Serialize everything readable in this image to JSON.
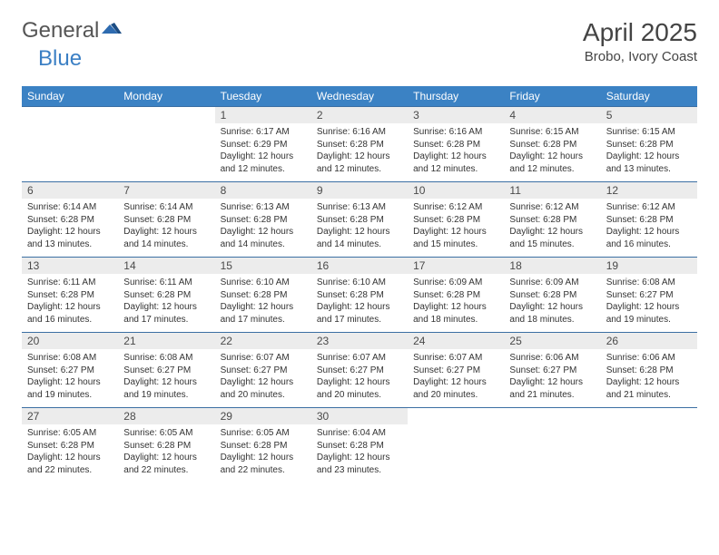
{
  "logo": {
    "text_general": "General",
    "text_blue": "Blue",
    "general_color": "#555555",
    "blue_color": "#3b7fc4"
  },
  "title": "April 2025",
  "location": "Brobo, Ivory Coast",
  "colors": {
    "header_bg": "#3b82c4",
    "header_text": "#ffffff",
    "daynum_bg": "#ececec",
    "daynum_text": "#4a4a4a",
    "info_text": "#333333",
    "row_border": "#3b6fa3",
    "page_bg": "#ffffff"
  },
  "typography": {
    "title_fontsize": 28,
    "location_fontsize": 15,
    "dayhead_fontsize": 12,
    "daynum_fontsize": 12,
    "info_fontsize": 10
  },
  "day_headers": [
    "Sunday",
    "Monday",
    "Tuesday",
    "Wednesday",
    "Thursday",
    "Friday",
    "Saturday"
  ],
  "weeks": [
    {
      "nums": [
        "",
        "",
        "1",
        "2",
        "3",
        "4",
        "5"
      ],
      "cells": [
        null,
        null,
        {
          "sunrise": "Sunrise: 6:17 AM",
          "sunset": "Sunset: 6:29 PM",
          "daylight": "Daylight: 12 hours and 12 minutes."
        },
        {
          "sunrise": "Sunrise: 6:16 AM",
          "sunset": "Sunset: 6:28 PM",
          "daylight": "Daylight: 12 hours and 12 minutes."
        },
        {
          "sunrise": "Sunrise: 6:16 AM",
          "sunset": "Sunset: 6:28 PM",
          "daylight": "Daylight: 12 hours and 12 minutes."
        },
        {
          "sunrise": "Sunrise: 6:15 AM",
          "sunset": "Sunset: 6:28 PM",
          "daylight": "Daylight: 12 hours and 12 minutes."
        },
        {
          "sunrise": "Sunrise: 6:15 AM",
          "sunset": "Sunset: 6:28 PM",
          "daylight": "Daylight: 12 hours and 13 minutes."
        }
      ]
    },
    {
      "nums": [
        "6",
        "7",
        "8",
        "9",
        "10",
        "11",
        "12"
      ],
      "cells": [
        {
          "sunrise": "Sunrise: 6:14 AM",
          "sunset": "Sunset: 6:28 PM",
          "daylight": "Daylight: 12 hours and 13 minutes."
        },
        {
          "sunrise": "Sunrise: 6:14 AM",
          "sunset": "Sunset: 6:28 PM",
          "daylight": "Daylight: 12 hours and 14 minutes."
        },
        {
          "sunrise": "Sunrise: 6:13 AM",
          "sunset": "Sunset: 6:28 PM",
          "daylight": "Daylight: 12 hours and 14 minutes."
        },
        {
          "sunrise": "Sunrise: 6:13 AM",
          "sunset": "Sunset: 6:28 PM",
          "daylight": "Daylight: 12 hours and 14 minutes."
        },
        {
          "sunrise": "Sunrise: 6:12 AM",
          "sunset": "Sunset: 6:28 PM",
          "daylight": "Daylight: 12 hours and 15 minutes."
        },
        {
          "sunrise": "Sunrise: 6:12 AM",
          "sunset": "Sunset: 6:28 PM",
          "daylight": "Daylight: 12 hours and 15 minutes."
        },
        {
          "sunrise": "Sunrise: 6:12 AM",
          "sunset": "Sunset: 6:28 PM",
          "daylight": "Daylight: 12 hours and 16 minutes."
        }
      ]
    },
    {
      "nums": [
        "13",
        "14",
        "15",
        "16",
        "17",
        "18",
        "19"
      ],
      "cells": [
        {
          "sunrise": "Sunrise: 6:11 AM",
          "sunset": "Sunset: 6:28 PM",
          "daylight": "Daylight: 12 hours and 16 minutes."
        },
        {
          "sunrise": "Sunrise: 6:11 AM",
          "sunset": "Sunset: 6:28 PM",
          "daylight": "Daylight: 12 hours and 17 minutes."
        },
        {
          "sunrise": "Sunrise: 6:10 AM",
          "sunset": "Sunset: 6:28 PM",
          "daylight": "Daylight: 12 hours and 17 minutes."
        },
        {
          "sunrise": "Sunrise: 6:10 AM",
          "sunset": "Sunset: 6:28 PM",
          "daylight": "Daylight: 12 hours and 17 minutes."
        },
        {
          "sunrise": "Sunrise: 6:09 AM",
          "sunset": "Sunset: 6:28 PM",
          "daylight": "Daylight: 12 hours and 18 minutes."
        },
        {
          "sunrise": "Sunrise: 6:09 AM",
          "sunset": "Sunset: 6:28 PM",
          "daylight": "Daylight: 12 hours and 18 minutes."
        },
        {
          "sunrise": "Sunrise: 6:08 AM",
          "sunset": "Sunset: 6:27 PM",
          "daylight": "Daylight: 12 hours and 19 minutes."
        }
      ]
    },
    {
      "nums": [
        "20",
        "21",
        "22",
        "23",
        "24",
        "25",
        "26"
      ],
      "cells": [
        {
          "sunrise": "Sunrise: 6:08 AM",
          "sunset": "Sunset: 6:27 PM",
          "daylight": "Daylight: 12 hours and 19 minutes."
        },
        {
          "sunrise": "Sunrise: 6:08 AM",
          "sunset": "Sunset: 6:27 PM",
          "daylight": "Daylight: 12 hours and 19 minutes."
        },
        {
          "sunrise": "Sunrise: 6:07 AM",
          "sunset": "Sunset: 6:27 PM",
          "daylight": "Daylight: 12 hours and 20 minutes."
        },
        {
          "sunrise": "Sunrise: 6:07 AM",
          "sunset": "Sunset: 6:27 PM",
          "daylight": "Daylight: 12 hours and 20 minutes."
        },
        {
          "sunrise": "Sunrise: 6:07 AM",
          "sunset": "Sunset: 6:27 PM",
          "daylight": "Daylight: 12 hours and 20 minutes."
        },
        {
          "sunrise": "Sunrise: 6:06 AM",
          "sunset": "Sunset: 6:27 PM",
          "daylight": "Daylight: 12 hours and 21 minutes."
        },
        {
          "sunrise": "Sunrise: 6:06 AM",
          "sunset": "Sunset: 6:28 PM",
          "daylight": "Daylight: 12 hours and 21 minutes."
        }
      ]
    },
    {
      "nums": [
        "27",
        "28",
        "29",
        "30",
        "",
        "",
        ""
      ],
      "cells": [
        {
          "sunrise": "Sunrise: 6:05 AM",
          "sunset": "Sunset: 6:28 PM",
          "daylight": "Daylight: 12 hours and 22 minutes."
        },
        {
          "sunrise": "Sunrise: 6:05 AM",
          "sunset": "Sunset: 6:28 PM",
          "daylight": "Daylight: 12 hours and 22 minutes."
        },
        {
          "sunrise": "Sunrise: 6:05 AM",
          "sunset": "Sunset: 6:28 PM",
          "daylight": "Daylight: 12 hours and 22 minutes."
        },
        {
          "sunrise": "Sunrise: 6:04 AM",
          "sunset": "Sunset: 6:28 PM",
          "daylight": "Daylight: 12 hours and 23 minutes."
        },
        null,
        null,
        null
      ]
    }
  ]
}
